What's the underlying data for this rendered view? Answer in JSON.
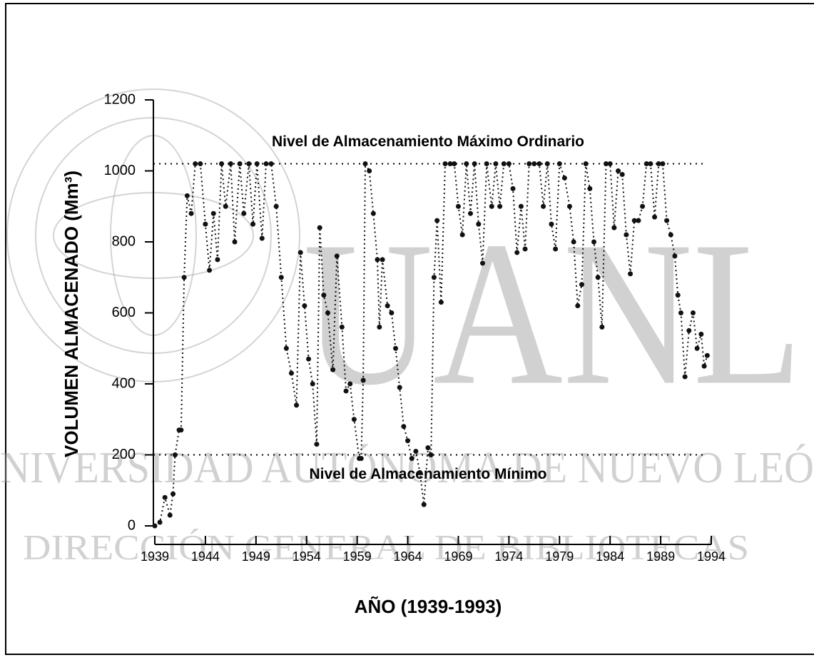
{
  "chart_data": {
    "type": "line",
    "ylabel": "VOLUMEN ALMACENADO (Mm³)",
    "xlabel": "AÑO (1939-1993)",
    "xlim": [
      1939,
      1994
    ],
    "xticks": [
      1939,
      1944,
      1949,
      1954,
      1959,
      1964,
      1969,
      1974,
      1979,
      1984,
      1989,
      1994
    ],
    "ylim": [
      0,
      1200
    ],
    "yticks": [
      0,
      200,
      400,
      600,
      800,
      1000,
      1200
    ],
    "reference_lines": [
      {
        "value": 1020,
        "label": "Nivel de Almacenamiento Máximo Ordinario"
      },
      {
        "value": 200,
        "label": "Nivel de Almacenamiento Mínimo"
      }
    ],
    "x": [
      1939.0,
      1939.5,
      1940.0,
      1940.5,
      1940.8,
      1941.0,
      1941.4,
      1941.6,
      1941.9,
      1942.2,
      1942.6,
      1943.0,
      1943.5,
      1944.0,
      1944.4,
      1944.8,
      1945.2,
      1945.6,
      1946.0,
      1946.5,
      1946.9,
      1947.4,
      1947.8,
      1948.3,
      1948.7,
      1949.1,
      1949.6,
      1950.0,
      1950.5,
      1951.0,
      1951.5,
      1952.0,
      1952.5,
      1953.0,
      1953.4,
      1953.8,
      1954.2,
      1954.6,
      1955.0,
      1955.3,
      1955.7,
      1956.1,
      1956.6,
      1957.0,
      1957.5,
      1957.9,
      1958.3,
      1958.7,
      1959.2,
      1959.4,
      1959.6,
      1959.8,
      1960.2,
      1960.6,
      1961.0,
      1961.2,
      1961.5,
      1962.0,
      1962.4,
      1962.8,
      1963.2,
      1963.6,
      1964.0,
      1964.4,
      1964.8,
      1965.2,
      1965.6,
      1966.0,
      1966.3,
      1966.6,
      1966.9,
      1967.3,
      1967.7,
      1968.2,
      1968.6,
      1969.0,
      1969.4,
      1969.8,
      1970.2,
      1970.6,
      1971.0,
      1971.4,
      1971.8,
      1972.3,
      1972.7,
      1973.1,
      1973.5,
      1974.0,
      1974.4,
      1974.8,
      1975.2,
      1975.6,
      1976.0,
      1976.5,
      1977.0,
      1977.4,
      1977.8,
      1978.2,
      1978.6,
      1979.0,
      1979.5,
      1980.0,
      1980.4,
      1980.8,
      1981.2,
      1981.6,
      1982.0,
      1982.4,
      1982.8,
      1983.2,
      1983.6,
      1984.0,
      1984.4,
      1984.8,
      1985.2,
      1985.6,
      1986.0,
      1986.4,
      1986.8,
      1987.2,
      1987.6,
      1988.0,
      1988.4,
      1988.8,
      1989.2,
      1989.6,
      1990.0,
      1990.4,
      1990.7,
      1991.0,
      1991.4,
      1991.8,
      1992.2,
      1992.6,
      1993.0,
      1993.3,
      1993.6
    ],
    "series": [
      {
        "color": "#111111",
        "values": [
          0,
          10,
          80,
          30,
          90,
          200,
          270,
          270,
          700,
          930,
          880,
          1020,
          1020,
          850,
          720,
          880,
          750,
          1020,
          900,
          1020,
          800,
          1020,
          880,
          1020,
          850,
          1020,
          810,
          1020,
          1020,
          900,
          700,
          500,
          430,
          340,
          770,
          620,
          470,
          400,
          230,
          840,
          650,
          600,
          440,
          760,
          560,
          380,
          400,
          300,
          190,
          190,
          410,
          1020,
          1000,
          880,
          750,
          560,
          750,
          620,
          600,
          500,
          390,
          280,
          240,
          190,
          210,
          150,
          60,
          220,
          200,
          700,
          860,
          630,
          1020,
          1020,
          1020,
          900,
          820,
          1020,
          880,
          1020,
          850,
          740,
          1020,
          900,
          1020,
          900,
          1020,
          1020,
          950,
          770,
          900,
          780,
          1020,
          1020,
          1020,
          900,
          1020,
          850,
          780,
          1020,
          980,
          900,
          800,
          620,
          680,
          1020,
          950,
          800,
          700,
          560,
          1020,
          1020,
          840,
          1000,
          990,
          820,
          710,
          860,
          860,
          900,
          1020,
          1020,
          870,
          1020,
          1020,
          860,
          820,
          760,
          650,
          600,
          420,
          550,
          600,
          500,
          540,
          450,
          480
        ]
      }
    ],
    "watermark": [
      "UANL",
      "NIVERSIDAD AUTÓNOMA DE NUEVO LEÓ",
      "DIRECCIÓN GENERAL DE BIBLIOTECAS"
    ]
  }
}
